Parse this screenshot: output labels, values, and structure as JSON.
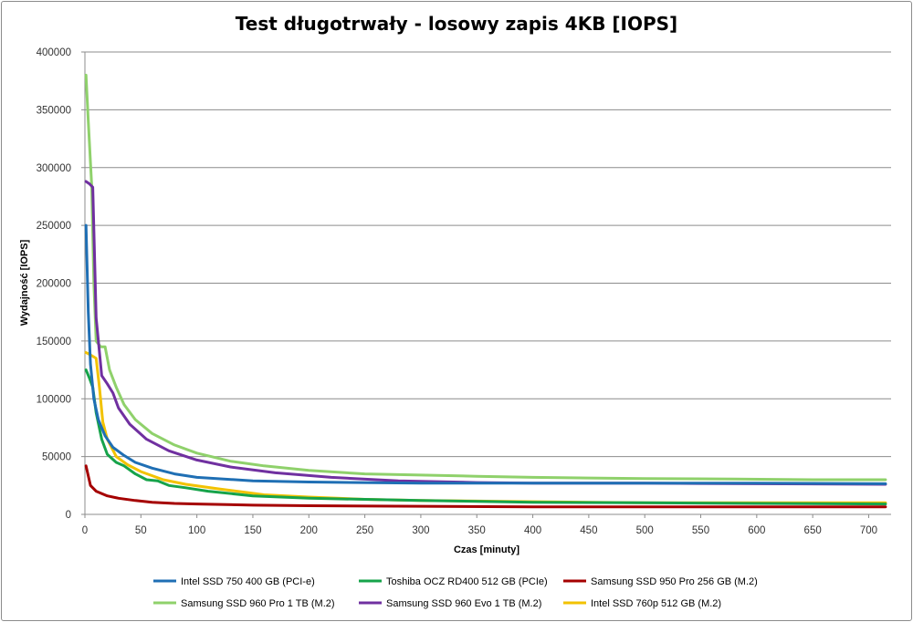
{
  "chart_data": {
    "type": "line",
    "title": "Test długotrwały - losowy zapis 4KB [IOPS]",
    "xlabel": "Czas [minuty]",
    "ylabel": "Wydajność [IOPS]",
    "xlim": [
      0,
      720
    ],
    "ylim": [
      0,
      400000
    ],
    "xticks": [
      0,
      50,
      100,
      150,
      200,
      250,
      300,
      350,
      400,
      450,
      500,
      550,
      600,
      650,
      700
    ],
    "yticks": [
      0,
      50000,
      100000,
      150000,
      200000,
      250000,
      300000,
      350000,
      400000
    ],
    "grid": "horizontal",
    "legend_position": "bottom",
    "series": [
      {
        "name": "Intel SSD 750 400 GB (PCI-e)",
        "color": "#1f6fb4",
        "x": [
          1,
          3,
          5,
          8,
          12,
          18,
          25,
          35,
          45,
          60,
          80,
          100,
          150,
          200,
          300,
          400,
          500,
          600,
          715
        ],
        "y": [
          250000,
          175000,
          130000,
          100000,
          82000,
          68000,
          58000,
          51000,
          45000,
          40000,
          35000,
          32000,
          29000,
          28000,
          27000,
          27000,
          27000,
          27000,
          26500
        ]
      },
      {
        "name": "Toshiba OCZ RD400 512 GB (PCIe)",
        "color": "#16a34a",
        "x": [
          1,
          4,
          7,
          10,
          15,
          20,
          28,
          35,
          45,
          55,
          65,
          75,
          90,
          110,
          150,
          200,
          300,
          400,
          500,
          600,
          715
        ],
        "y": [
          125000,
          118000,
          110000,
          88000,
          65000,
          52000,
          45000,
          42000,
          35000,
          30000,
          29000,
          25000,
          23000,
          20000,
          16000,
          14000,
          12000,
          10500,
          10000,
          9500,
          9000
        ]
      },
      {
        "name": "Samsung SSD 950 Pro 256 GB (M.2)",
        "color": "#a50000",
        "x": [
          1,
          5,
          10,
          20,
          30,
          45,
          60,
          80,
          100,
          150,
          200,
          300,
          400,
          500,
          600,
          715
        ],
        "y": [
          42000,
          25000,
          20000,
          16000,
          14000,
          12000,
          10500,
          9500,
          9000,
          8000,
          7500,
          7000,
          6500,
          6500,
          6500,
          6500
        ]
      },
      {
        "name": "Samsung SSD 960 Pro 1 TB (M.2)",
        "color": "#8fd16b",
        "x": [
          1,
          3,
          6,
          8,
          10,
          14,
          18,
          22,
          28,
          35,
          45,
          60,
          80,
          100,
          130,
          160,
          200,
          250,
          300,
          350,
          400,
          450,
          500,
          580,
          650,
          715
        ],
        "y": [
          380000,
          340000,
          285000,
          200000,
          150000,
          145000,
          145000,
          125000,
          110000,
          95000,
          82000,
          70000,
          60000,
          53000,
          46000,
          42000,
          38000,
          35000,
          34000,
          33000,
          32000,
          31500,
          31000,
          30500,
          30000,
          30000
        ]
      },
      {
        "name": "Samsung SSD 960 Evo 1 TB (M.2)",
        "color": "#7030a0",
        "x": [
          1,
          4,
          7,
          10,
          15,
          20,
          25,
          30,
          40,
          55,
          75,
          100,
          130,
          170,
          220,
          280,
          350,
          400,
          500,
          600,
          715
        ],
        "y": [
          288000,
          286000,
          283000,
          170000,
          120000,
          113000,
          105000,
          92000,
          78000,
          65000,
          55000,
          47000,
          41000,
          36000,
          32000,
          29000,
          27500,
          27000,
          27000,
          26500,
          26000
        ]
      },
      {
        "name": "Intel SSD 760p 512 GB (M.2)",
        "color": "#f2c200",
        "x": [
          1,
          5,
          10,
          13,
          16,
          20,
          28,
          38,
          50,
          70,
          90,
          120,
          160,
          200,
          250,
          300,
          350,
          400,
          450,
          500,
          600,
          715
        ],
        "y": [
          140000,
          138000,
          135000,
          110000,
          80000,
          65000,
          50000,
          43000,
          37000,
          30000,
          26000,
          22000,
          17000,
          15000,
          13000,
          12000,
          11500,
          11000,
          10500,
          10000,
          10000,
          10000
        ]
      }
    ]
  }
}
